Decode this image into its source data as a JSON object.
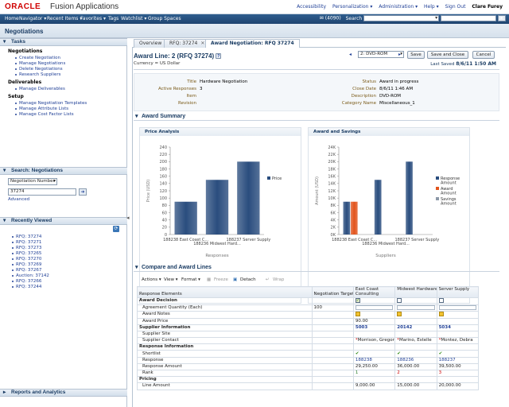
{
  "app": {
    "logo": "ORACLE",
    "name": "Fusion Applications",
    "top_links": [
      "Accessibility",
      "Personalization ▾",
      "Administration ▾",
      "Help ▾",
      "Sign Out"
    ],
    "user": "Clare Furey"
  },
  "nav": {
    "items": [
      "Home",
      "Navigator ▾",
      "Recent Items ▾",
      "Favorites ▾",
      "Tags",
      "Watchlist ▾",
      "Group Spaces"
    ],
    "count": "(4090)",
    "search_label": "Search",
    "search_scope": "All"
  },
  "page_title": "Negotiations",
  "tasks": {
    "header": "Tasks",
    "sections": [
      {
        "title": "Negotiations",
        "links": [
          "Create Negotiation",
          "Manage Negotiations",
          "Delete Negotiations",
          "Research Suppliers"
        ]
      },
      {
        "title": "Deliverables",
        "links": [
          "Manage Deliverables"
        ]
      },
      {
        "title": "Setup",
        "links": [
          "Manage Negotiation Templates",
          "Manage Attribute Lists",
          "Manage Cost Factor Lists"
        ]
      }
    ]
  },
  "search": {
    "header": "Search: Negotiations",
    "criteria": "Negotiation Number",
    "value": "37274",
    "advanced": "Advanced"
  },
  "recent": {
    "header": "Recently Viewed",
    "items": [
      "RFQ: 37274",
      "RFQ: 37271",
      "RFQ: 37273",
      "RFQ: 37265",
      "RFQ: 37270",
      "RFQ: 37269",
      "RFQ: 37267",
      "Auction: 37142",
      "RFQ: 37266",
      "RFQ: 37244"
    ]
  },
  "reports_header": "Reports and Analytics",
  "tabs": [
    {
      "label": "Overview",
      "active": false
    },
    {
      "label": "RFQ: 37274",
      "active": false
    },
    {
      "label": "Award Negotiation: RFQ 37274",
      "active": true
    }
  ],
  "main": {
    "title": "Award Line: 2 (RFQ 37274)",
    "currency": "Currency = US Dollar",
    "line_select": "2: DVD-ROM",
    "buttons": {
      "save": "Save",
      "save_close": "Save and Close",
      "cancel": "Cancel"
    },
    "last_saved_label": "Last Saved",
    "last_saved_value": "8/6/11 1:50 AM",
    "fields_left": [
      {
        "label": "Title",
        "value": "Hardware Negotiation"
      },
      {
        "label": "Active Responses",
        "value": "3"
      },
      {
        "label": "Item",
        "value": ""
      },
      {
        "label": "Revision",
        "value": ""
      }
    ],
    "fields_right": [
      {
        "label": "Status",
        "value": "Award in progress"
      },
      {
        "label": "Close Date",
        "value": "8/6/11 1:46 AM"
      },
      {
        "label": "Description",
        "value": "DVD-ROM"
      },
      {
        "label": "Category Name",
        "value": "Miscellaneous_1"
      }
    ],
    "award_summary": "Award Summary",
    "compare_title": "Compare and Award Lines",
    "toolbar": {
      "actions": "Actions ▾",
      "view": "View ▾",
      "format": "Format ▾",
      "freeze": "Freeze",
      "detach": "Detach",
      "wrap": "Wrap"
    }
  },
  "chart_data": [
    {
      "type": "bar",
      "title": "Price Analysis",
      "categories": [
        "188238 East Coast C...",
        "188236 Midwest Hard...",
        "188237 Server Supply"
      ],
      "series": [
        {
          "name": "Price",
          "values": [
            90,
            150,
            200
          ]
        }
      ],
      "xlabel": "Responses",
      "ylabel": "Price (USD)",
      "ylim": [
        0,
        240
      ],
      "yticks": [
        "0",
        "20",
        "40",
        "60",
        "80",
        "100",
        "120",
        "140",
        "160",
        "180",
        "200",
        "220",
        "240"
      ],
      "legend": "right",
      "colors": [
        "#2a4d7e"
      ]
    },
    {
      "type": "bar",
      "title": "Award and Savings",
      "categories": [
        "188238 East Coast C...",
        "188236 Midwest Hard...",
        "188237 Server Supply"
      ],
      "series": [
        {
          "name": "Response Amount",
          "values": [
            9000,
            15000,
            20000
          ]
        },
        {
          "name": "Award Amount",
          "values": [
            9000,
            0,
            0
          ]
        },
        {
          "name": "Savings Amount",
          "values": [
            0,
            0,
            0
          ]
        }
      ],
      "xlabel": "Suppliers",
      "ylabel": "Amount (USD)",
      "ylim": [
        0,
        24000
      ],
      "yticks": [
        "0K",
        "2K",
        "4K",
        "6K",
        "8K",
        "10K",
        "12K",
        "14K",
        "16K",
        "18K",
        "20K",
        "22K",
        "24K"
      ],
      "legend": "right",
      "colors": [
        "#2a4d7e",
        "#e2541d",
        "#8c98a8"
      ]
    }
  ],
  "grid": {
    "headers": [
      "Response Elements",
      "Negotiation Target",
      "East Coast Consulting",
      "Midwest Hardware",
      "Server Supply"
    ],
    "rows": [
      {
        "type": "group",
        "label": "Award Decision",
        "cells": [
          "",
          "cb-on",
          "cb",
          "cb"
        ]
      },
      {
        "type": "item",
        "label": "Agreement Quantity (Each)",
        "cells": [
          "100",
          "input",
          "input",
          "input"
        ]
      },
      {
        "type": "item",
        "label": "Award Notes",
        "cells": [
          "",
          "note",
          "note",
          "note"
        ]
      },
      {
        "type": "item",
        "label": "Award Price",
        "cells": [
          "",
          "90.00",
          "",
          ""
        ]
      },
      {
        "type": "group",
        "label": "Supplier Information",
        "cells": [
          "",
          "link:5003",
          "link:20142",
          "link:5034"
        ]
      },
      {
        "type": "item",
        "label": "Supplier Site",
        "cells": [
          "",
          "",
          "",
          ""
        ]
      },
      {
        "type": "item",
        "label": "Supplier Contact",
        "cells": [
          "",
          "req:Morrison, Gregory",
          "req:Marino, Estelle",
          "req:Montez, Debra"
        ]
      },
      {
        "type": "group",
        "label": "Response Information",
        "cells": [
          "",
          "",
          "",
          ""
        ]
      },
      {
        "type": "item",
        "label": "Shortlist",
        "cells": [
          "",
          "check",
          "check",
          "check"
        ]
      },
      {
        "type": "item",
        "label": "Response",
        "cells": [
          "",
          "link:188238",
          "link:188236",
          "link:188237"
        ]
      },
      {
        "type": "item",
        "label": "Response Amount",
        "cells": [
          "",
          "29,250.00",
          "36,000.00",
          "39,500.00"
        ]
      },
      {
        "type": "item",
        "label": "Rank",
        "cells": [
          "",
          "green:1",
          "red:2",
          "red:3"
        ]
      },
      {
        "type": "group",
        "label": "Pricing",
        "cells": [
          "",
          "",
          "",
          ""
        ]
      },
      {
        "type": "item",
        "label": "Line Amount",
        "cells": [
          "",
          "9,000.00",
          "15,000.00",
          "20,000.00"
        ]
      }
    ]
  }
}
